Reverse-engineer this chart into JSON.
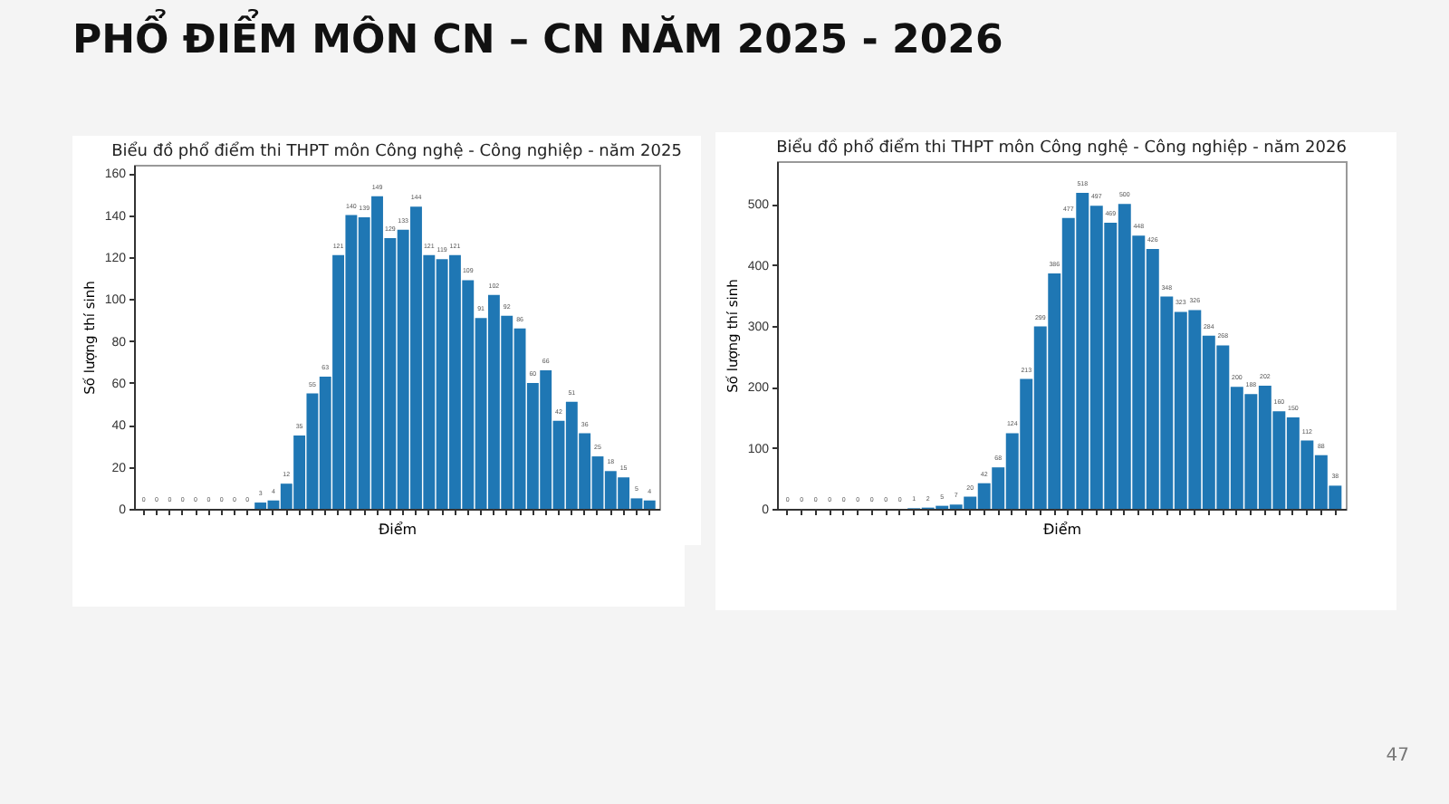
{
  "chart_data": [
    {
      "type": "bar",
      "title": "Biểu đồ phổ điểm thi THPT môn Công nghệ - Công nghiệp - năm 2025",
      "xlabel": "Điểm",
      "ylabel": "Số lượng thí sinh",
      "annotations": [
        "PHỔ ĐIỂM MÔN CN – CN NĂM 2025 - 2026"
      ],
      "categories": [
        null,
        null,
        null,
        null,
        null,
        null,
        null,
        null,
        null,
        null,
        null,
        null,
        null,
        null,
        null,
        null,
        null,
        null,
        null,
        null,
        null,
        null,
        null,
        null,
        null,
        null,
        null,
        null,
        null,
        null,
        null,
        null,
        null,
        null,
        null,
        null,
        null,
        null,
        null,
        null
      ],
      "values": [
        0,
        0,
        0,
        0,
        0,
        0,
        0,
        0,
        0,
        3,
        4,
        12,
        35,
        55,
        63,
        121,
        140,
        139,
        149,
        129,
        133,
        144,
        121,
        119,
        121,
        109,
        91,
        102,
        92,
        86,
        60,
        66,
        42,
        51,
        36,
        25,
        18,
        15,
        5,
        4
      ],
      "color": "#1f77b4",
      "ylim": [
        0,
        164
      ],
      "yticks": [
        0,
        20,
        40,
        60,
        80,
        100,
        120,
        140,
        160
      ],
      "grid": false,
      "data_labels": true
    },
    {
      "type": "bar",
      "title": "Biểu đồ phổ điểm thi THPT môn Công nghệ - Công nghiệp - năm 2026",
      "xlabel": "Điểm",
      "ylabel": "Số lượng thí sinh",
      "annotations": [
        "47"
      ],
      "categories": [
        null,
        null,
        null,
        null,
        null,
        null,
        null,
        null,
        null,
        null,
        null,
        null,
        null,
        null,
        null,
        null,
        null,
        null,
        null,
        null,
        null,
        null,
        null,
        null,
        null,
        null,
        null,
        null,
        null,
        null,
        null,
        null,
        null,
        null,
        null,
        null,
        null,
        null,
        null,
        null
      ],
      "values": [
        0,
        0,
        0,
        0,
        0,
        0,
        0,
        0,
        0,
        1,
        2,
        5,
        7,
        20,
        42,
        68,
        124,
        213,
        299,
        386,
        477,
        518,
        497,
        469,
        500,
        448,
        426,
        348,
        323,
        326,
        284,
        268,
        200,
        188,
        202,
        160,
        150,
        112,
        88,
        38
      ],
      "color": "#1f77b4",
      "ylim": [
        0,
        570
      ],
      "yticks": [
        0,
        100,
        200,
        300,
        400,
        500
      ],
      "grid": false,
      "data_labels": true
    }
  ]
}
